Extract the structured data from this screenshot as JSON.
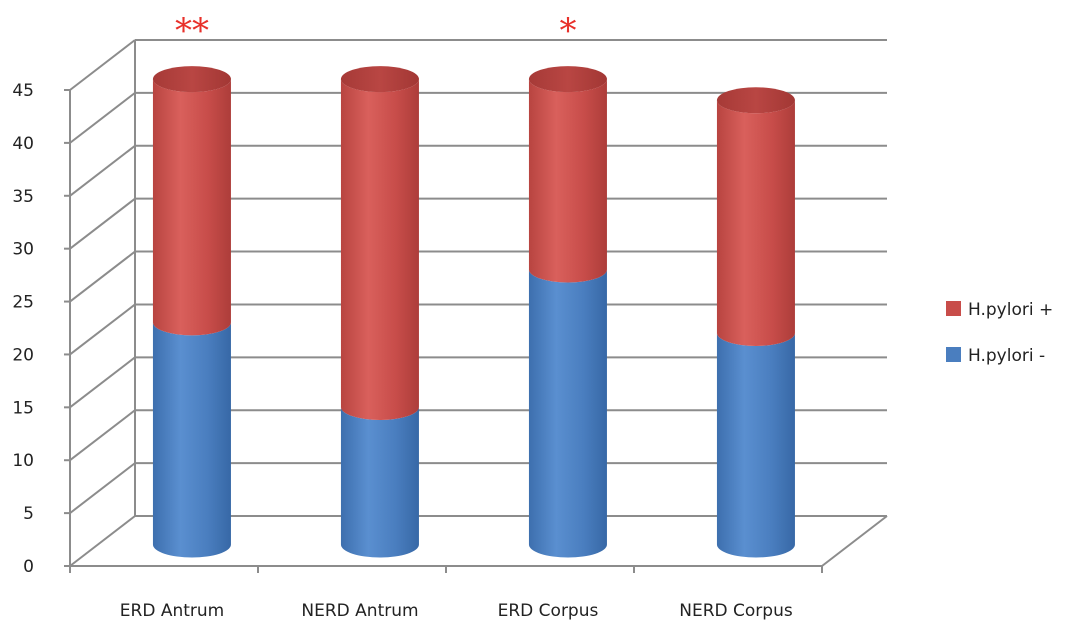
{
  "chart_data": {
    "type": "bar",
    "stacked": true,
    "style": "3d-cylinder",
    "categories": [
      "ERD Antrum",
      "NERD Antrum",
      "ERD Corpus",
      "NERD Corpus"
    ],
    "series": [
      {
        "name": "H.pylori -",
        "values": [
          21,
          13,
          26,
          20
        ],
        "color": "#4a7ebf"
      },
      {
        "name": "H.pylori +",
        "values": [
          23,
          31,
          18,
          22
        ],
        "color": "#c84d4a"
      }
    ],
    "annotations": [
      "**",
      "",
      "*",
      ""
    ],
    "annotation_color": "#e8302a",
    "ylim": [
      0,
      45
    ],
    "yticks": [
      "0",
      "5",
      "10",
      "15",
      "20",
      "25",
      "30",
      "35",
      "40",
      "45"
    ],
    "grid": true,
    "legend_position": "right",
    "legend_order": [
      "H.pylori +",
      "H.pylori -"
    ]
  }
}
